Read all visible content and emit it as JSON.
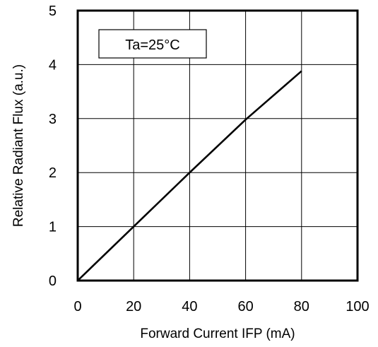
{
  "chart_data": {
    "type": "line",
    "title": "",
    "xlabel": "Forward Current  IFP (mA)",
    "ylabel": "Relative Radiant Flux (a.u.)",
    "xlim": [
      0,
      100
    ],
    "ylim": [
      0,
      5
    ],
    "x_ticks": [
      "0",
      "20",
      "40",
      "60",
      "80",
      "100"
    ],
    "y_ticks": [
      "0",
      "1",
      "2",
      "3",
      "4",
      "5"
    ],
    "grid": true,
    "annotation": "Ta=25°C",
    "series": [
      {
        "x": [
          0,
          20,
          40,
          60,
          80
        ],
        "y": [
          0,
          1.0,
          2.0,
          2.98,
          3.88
        ]
      }
    ],
    "colors": {
      "line": "#000000",
      "grid": "#000000",
      "background": "#ffffff"
    }
  }
}
